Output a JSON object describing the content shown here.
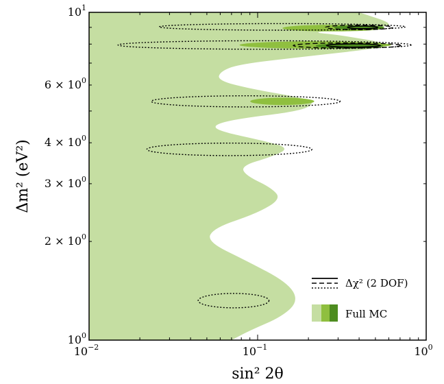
{
  "chart_data": {
    "type": "contour",
    "xscale": "log",
    "yscale": "log",
    "xlim": [
      0.01,
      1
    ],
    "ylim": [
      1,
      10
    ],
    "xlabel": "sin² 2θ",
    "ylabel": "Δm² (eV²)",
    "x_major_ticks": [
      {
        "value": 0.01,
        "base": "10",
        "exp": "−2"
      },
      {
        "value": 0.1,
        "base": "10",
        "exp": "−1"
      },
      {
        "value": 1,
        "base": "10",
        "exp": "0"
      }
    ],
    "y_major_ticks": [
      {
        "value": 1,
        "base": "10",
        "exp": "0"
      },
      {
        "value": 10,
        "base": "10",
        "exp": "1"
      }
    ],
    "y_minor_labeled_ticks": [
      {
        "value": 2,
        "label": "2 × 10",
        "exp": "0"
      },
      {
        "value": 3,
        "label": "3 × 10",
        "exp": "0"
      },
      {
        "value": 4,
        "label": "4 × 10",
        "exp": "0"
      },
      {
        "value": 6,
        "label": "6 × 10",
        "exp": "0"
      }
    ],
    "colors": {
      "level_90": "#c5dea2",
      "level_95": "#8fbf3f",
      "level_99": "#4d8c1f"
    },
    "regions": {
      "level_90_boundary": [
        [
          0.01,
          1
        ],
        [
          0.01,
          10
        ],
        [
          0.4,
          10
        ],
        [
          0.67,
          9.16
        ],
        [
          0.45,
          8.95
        ],
        [
          0.2,
          8.7
        ],
        [
          0.3,
          8.55
        ],
        [
          0.65,
          7.97
        ],
        [
          0.45,
          7.7
        ],
        [
          0.2,
          7.35
        ],
        [
          0.078,
          6.95
        ],
        [
          0.06,
          6.6
        ],
        [
          0.058,
          6.2
        ],
        [
          0.09,
          5.85
        ],
        [
          0.18,
          5.5
        ],
        [
          0.22,
          5.3
        ],
        [
          0.18,
          5.0
        ],
        [
          0.08,
          4.75
        ],
        [
          0.055,
          4.55
        ],
        [
          0.058,
          4.35
        ],
        [
          0.11,
          4.05
        ],
        [
          0.155,
          3.85
        ],
        [
          0.12,
          3.62
        ],
        [
          0.08,
          3.4
        ],
        [
          0.085,
          3.18
        ],
        [
          0.12,
          2.92
        ],
        [
          0.138,
          2.7
        ],
        [
          0.1,
          2.44
        ],
        [
          0.055,
          2.2
        ],
        [
          0.05,
          2.0
        ],
        [
          0.085,
          1.75
        ],
        [
          0.15,
          1.5
        ],
        [
          0.175,
          1.32
        ],
        [
          0.14,
          1.18
        ],
        [
          0.09,
          1.07
        ],
        [
          0.07,
          1.0
        ]
      ],
      "level_95_islands": [
        {
          "x_center": 0.28,
          "y_center": 8.95,
          "x_half_width_decades": 0.3,
          "y_half_height_decades": 0.01
        },
        {
          "x_center": 0.22,
          "y_center": 7.95,
          "x_half_width_decades": 0.45,
          "y_half_height_decades": 0.011
        },
        {
          "x_center": 0.14,
          "y_center": 5.35,
          "x_half_width_decades": 0.19,
          "y_half_height_decades": 0.011
        }
      ],
      "level_99_islands": [
        {
          "x_center": 0.4,
          "y_center": 9.0,
          "x_half_width_decades": 0.15,
          "y_half_height_decades": 0.006
        },
        {
          "x_center": 0.35,
          "y_center": 7.9,
          "x_half_width_decades": 0.2,
          "y_half_height_decades": 0.008
        }
      ]
    },
    "delta_chi2_contours": {
      "dotted": [
        {
          "x_center": 0.14,
          "y_center": 9.03,
          "x_half_width_decades": 0.73,
          "y_half_height_decades": 0.01
        },
        {
          "x_center": 0.11,
          "y_center": 7.95,
          "x_half_width_decades": 0.87,
          "y_half_height_decades": 0.013
        },
        {
          "x_center": 0.085,
          "y_center": 5.35,
          "x_half_width_decades": 0.56,
          "y_half_height_decades": 0.017
        },
        {
          "x_center": 0.068,
          "y_center": 3.82,
          "x_half_width_decades": 0.49,
          "y_half_height_decades": 0.019
        },
        {
          "x_center": 0.072,
          "y_center": 1.32,
          "x_half_width_decades": 0.21,
          "y_half_height_decades": 0.022
        }
      ],
      "dashed": [
        {
          "x_center": 0.4,
          "y_center": 9.0,
          "x_half_width_decades": 0.2,
          "y_half_height_decades": 0.007
        },
        {
          "x_center": 0.34,
          "y_center": 7.92,
          "x_half_width_decades": 0.32,
          "y_half_height_decades": 0.008
        }
      ],
      "solid": [
        {
          "x_center": 0.42,
          "y_center": 9.0,
          "x_half_width_decades": 0.09,
          "y_half_height_decades": 0.004
        },
        {
          "x_center": 0.37,
          "y_center": 7.92,
          "x_half_width_decades": 0.16,
          "y_half_height_decades": 0.005
        }
      ]
    },
    "legend": {
      "placement": "lower-right",
      "entries": [
        {
          "label": "Δχ² (2 DOF)",
          "marker": "line-styles",
          "styles": [
            "solid",
            "dashed",
            "dotted"
          ]
        },
        {
          "label": "Full MC",
          "marker": "color-patches",
          "colors": [
            "#c5dea2",
            "#8fbf3f",
            "#4d8c1f"
          ]
        }
      ]
    },
    "grid": false
  }
}
